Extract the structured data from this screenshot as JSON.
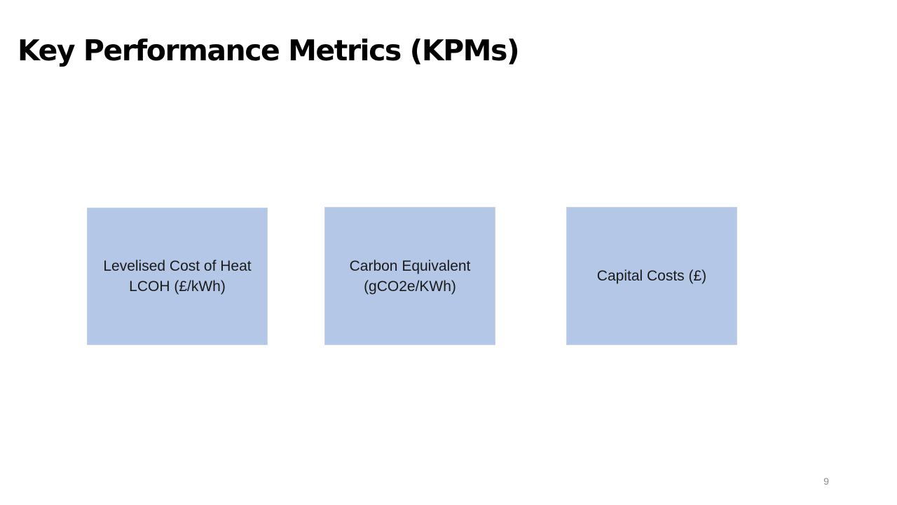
{
  "slide": {
    "title": "Key Performance Metrics (KPMs)",
    "metrics": [
      {
        "label": "Levelised Cost of Heat\nLCOH (£/kWh)"
      },
      {
        "label": "Carbon Equivalent\n(gCO2e/KWh)"
      },
      {
        "label": "Capital Costs (£)"
      }
    ],
    "page_number": "9"
  },
  "colors": {
    "box_fill": "#b4c7e7",
    "title_text": "#000000",
    "page_number_text": "#8c8c8c"
  }
}
